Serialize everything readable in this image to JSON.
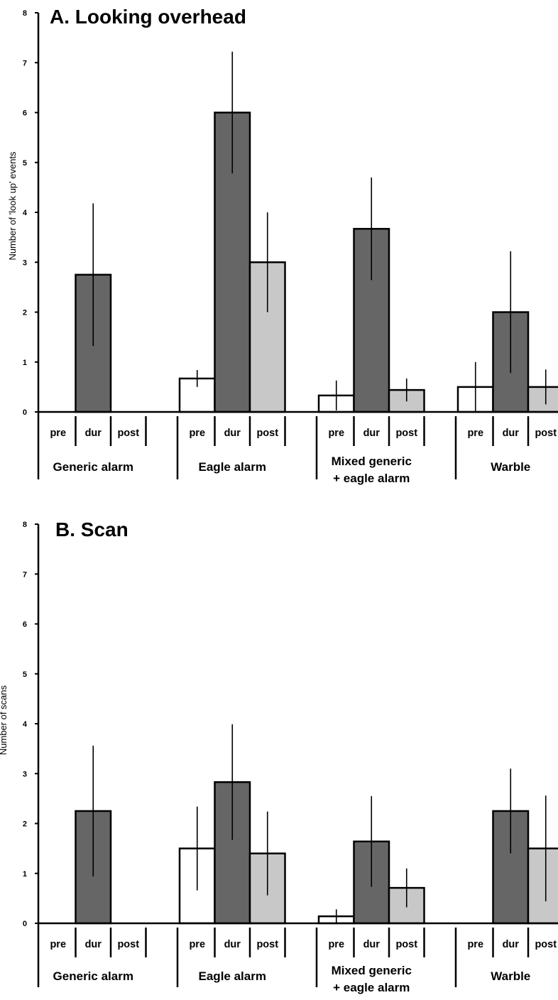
{
  "chart_data": [
    {
      "type": "bar",
      "title": "A. Looking overhead",
      "ylabel": "Number of 'look up' events",
      "ylim": [
        0,
        8
      ],
      "yticks": [
        "0",
        "1",
        "2",
        "3",
        "4",
        "5",
        "6",
        "7",
        "8"
      ],
      "conditions": [
        "pre",
        "dur",
        "post"
      ],
      "groups": [
        {
          "label": [
            "Generic alarm"
          ],
          "values": [
            0,
            2.75,
            0
          ],
          "errors": [
            0,
            1.43,
            0
          ]
        },
        {
          "label": [
            "Eagle alarm"
          ],
          "values": [
            0.67,
            6.0,
            3.0
          ],
          "errors": [
            0.17,
            1.22,
            1.0
          ]
        },
        {
          "label": [
            "Mixed generic",
            "+ eagle alarm"
          ],
          "values": [
            0.33,
            3.67,
            0.44
          ],
          "errors": [
            0.3,
            1.03,
            0.23
          ]
        },
        {
          "label": [
            "Warble"
          ],
          "values": [
            0.5,
            2.0,
            0.5
          ],
          "errors": [
            0.5,
            1.22,
            0.35
          ]
        }
      ],
      "series_colors": {
        "pre": "#ffffff",
        "dur": "#666666",
        "post": "#c8c8c8"
      }
    },
    {
      "type": "bar",
      "title": "B. Scan",
      "ylabel": "Number of scans",
      "ylim": [
        0,
        8
      ],
      "yticks": [
        "0",
        "1",
        "2",
        "3",
        "4",
        "5",
        "6",
        "7",
        "8"
      ],
      "conditions": [
        "pre",
        "dur",
        "post"
      ],
      "groups": [
        {
          "label": [
            "Generic alarm"
          ],
          "values": [
            0,
            2.25,
            0
          ],
          "errors": [
            0,
            1.31,
            0
          ]
        },
        {
          "label": [
            "Eagle alarm"
          ],
          "values": [
            1.5,
            2.83,
            1.4
          ],
          "errors": [
            0.84,
            1.16,
            0.84
          ]
        },
        {
          "label": [
            "Mixed generic",
            "+ eagle alarm"
          ],
          "values": [
            0.14,
            1.64,
            0.71
          ],
          "errors": [
            0.14,
            0.91,
            0.39
          ]
        },
        {
          "label": [
            "Warble"
          ],
          "values": [
            0,
            2.25,
            1.5
          ],
          "errors": [
            0,
            0.85,
            1.06
          ]
        }
      ],
      "series_colors": {
        "pre": "#ffffff",
        "dur": "#666666",
        "post": "#c8c8c8"
      }
    }
  ]
}
